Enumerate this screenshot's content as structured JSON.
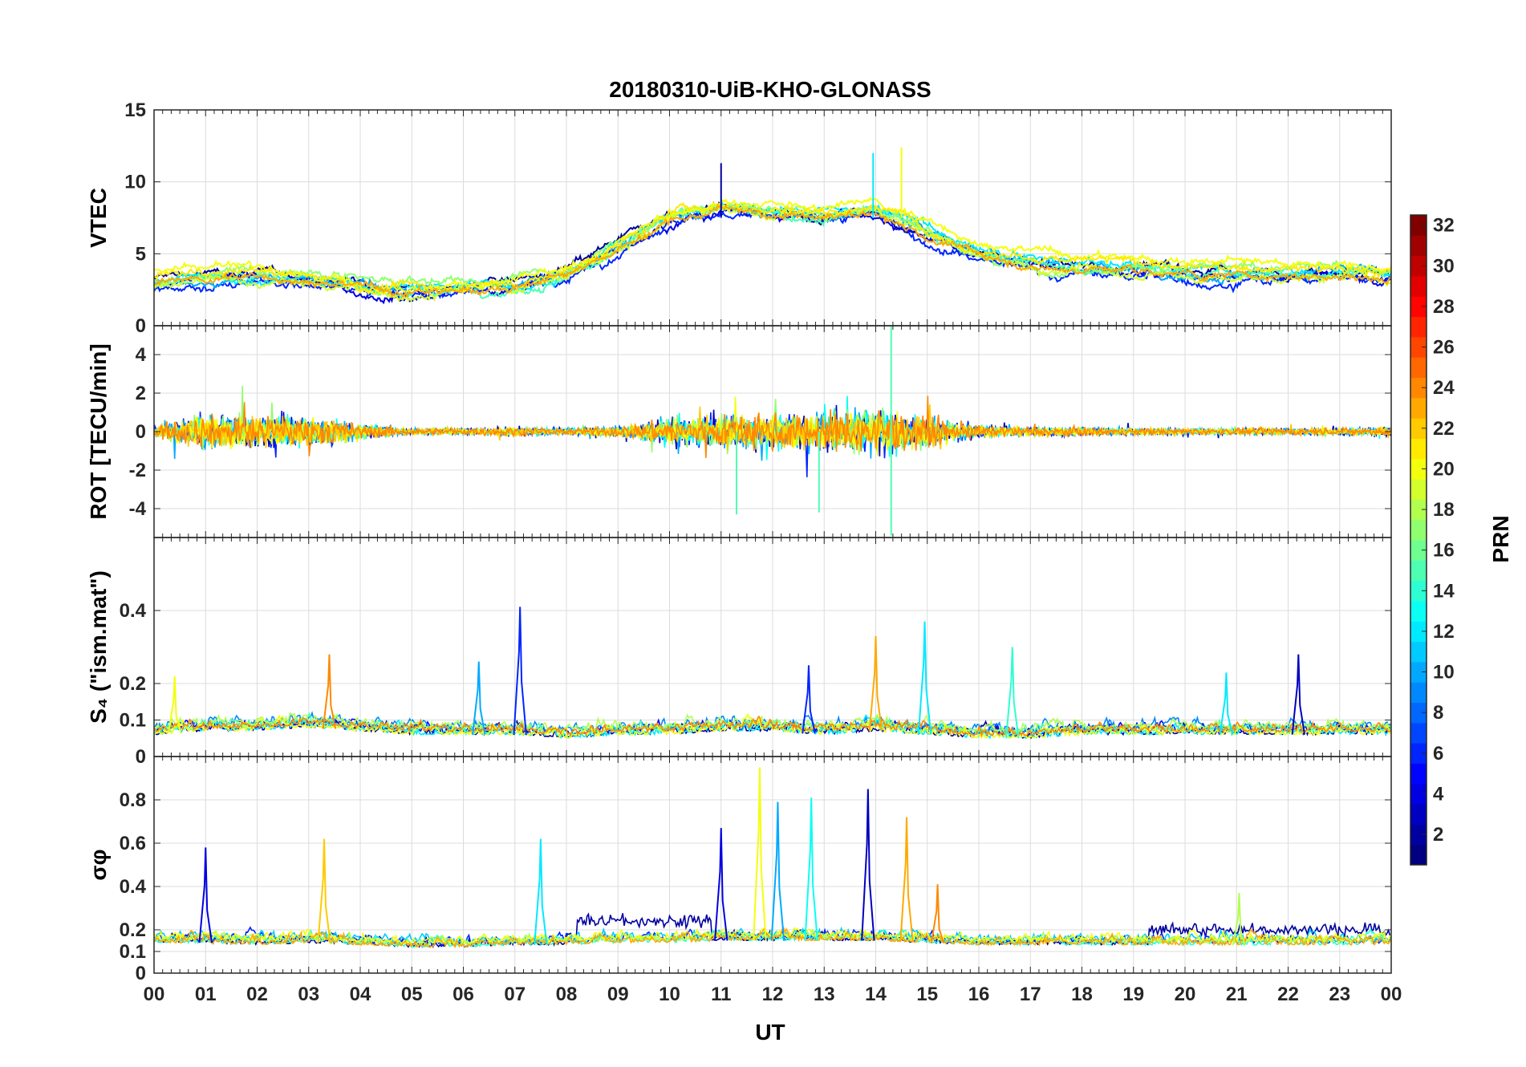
{
  "chart_data": {
    "type": "line",
    "title": "20180310-UiB-KHO-GLONASS",
    "xlabel": "UT",
    "x_ticks": [
      "00",
      "01",
      "02",
      "03",
      "04",
      "05",
      "06",
      "07",
      "08",
      "09",
      "10",
      "11",
      "12",
      "13",
      "14",
      "15",
      "16",
      "17",
      "18",
      "19",
      "20",
      "21",
      "22",
      "23",
      "00"
    ],
    "xlim": [
      0,
      24
    ],
    "colorbar": {
      "label": "PRN",
      "range": [
        1,
        32
      ],
      "ticks": [
        "2",
        "4",
        "6",
        "8",
        "10",
        "12",
        "14",
        "16",
        "18",
        "20",
        "22",
        "24",
        "26",
        "28",
        "30",
        "32"
      ],
      "colormap": "jet"
    },
    "panels": [
      {
        "id": "vtec",
        "ylabel": "VTEC",
        "ylim": [
          0,
          15
        ],
        "yticks": [
          "0",
          "5",
          "10",
          "15"
        ],
        "profile_hours": [
          0,
          1,
          2,
          3,
          4,
          5,
          6,
          7,
          8,
          9,
          10,
          11,
          12,
          13,
          14,
          15,
          16,
          17,
          18,
          19,
          20,
          21,
          22,
          23,
          24
        ],
        "profile_values": [
          3.0,
          3.3,
          3.4,
          3.2,
          2.7,
          2.5,
          2.7,
          2.9,
          3.5,
          5.5,
          7.5,
          8.2,
          7.8,
          7.6,
          8.0,
          6.5,
          5.0,
          4.3,
          4.1,
          4.0,
          3.8,
          3.6,
          3.7,
          3.7,
          3.5
        ],
        "spread": 1.1,
        "series_prn": [
          2,
          4,
          6,
          10,
          12,
          15,
          17,
          19,
          20,
          21,
          23
        ],
        "peaks": [
          {
            "x": 11.0,
            "y": 11.3
          },
          {
            "x": 13.95,
            "y": 12.0
          },
          {
            "x": 14.5,
            "y": 12.4
          }
        ]
      },
      {
        "id": "rot",
        "ylabel": "ROT [TECU/min]",
        "ylim": [
          -5.5,
          5.5
        ],
        "yticks": [
          "-4",
          "-2",
          "0",
          "2",
          "4"
        ],
        "profile_hours": [
          0,
          1,
          2,
          3,
          4,
          5,
          6,
          7,
          8,
          9,
          10,
          11,
          12,
          13,
          14,
          15,
          16,
          17,
          18,
          19,
          20,
          21,
          22,
          23,
          24
        ],
        "amplitude": [
          0.6,
          1.6,
          1.4,
          1.5,
          0.7,
          0.3,
          0.3,
          0.4,
          0.3,
          0.5,
          1.2,
          1.6,
          1.6,
          1.8,
          2.4,
          1.4,
          0.6,
          0.4,
          0.4,
          0.3,
          0.3,
          0.3,
          0.3,
          0.3,
          0.4
        ],
        "series_prn": [
          3,
          6,
          10,
          13,
          17,
          20,
          22,
          24
        ],
        "extremes": [
          {
            "x": 14.3,
            "y": 5.5
          },
          {
            "x": 14.3,
            "y": -5.4
          },
          {
            "x": 12.9,
            "y": -4.2
          },
          {
            "x": 11.3,
            "y": -4.3
          }
        ]
      },
      {
        "id": "s4",
        "ylabel": "S₄ (\"ism.mat\")",
        "ylim": [
          0,
          0.6
        ],
        "yticks": [
          "0",
          "0.1",
          "0.2",
          "0.4"
        ],
        "profile_hours": [
          0,
          1,
          2,
          3,
          4,
          5,
          6,
          7,
          8,
          9,
          10,
          11,
          12,
          13,
          14,
          15,
          16,
          17,
          18,
          19,
          20,
          21,
          22,
          23,
          24
        ],
        "baseline": [
          0.06,
          0.07,
          0.07,
          0.08,
          0.07,
          0.06,
          0.06,
          0.06,
          0.05,
          0.06,
          0.06,
          0.07,
          0.07,
          0.06,
          0.07,
          0.06,
          0.05,
          0.05,
          0.06,
          0.06,
          0.06,
          0.06,
          0.06,
          0.06,
          0.06
        ],
        "series_prn": [
          2,
          5,
          9,
          12,
          15,
          18,
          20,
          24
        ],
        "spikes": [
          {
            "x": 0.4,
            "y": 0.22,
            "prn": 20
          },
          {
            "x": 3.4,
            "y": 0.28,
            "prn": 24
          },
          {
            "x": 6.3,
            "y": 0.26,
            "prn": 10
          },
          {
            "x": 7.1,
            "y": 0.41,
            "prn": 6
          },
          {
            "x": 12.7,
            "y": 0.25,
            "prn": 6
          },
          {
            "x": 14.0,
            "y": 0.33,
            "prn": 23
          },
          {
            "x": 14.95,
            "y": 0.37,
            "prn": 12
          },
          {
            "x": 16.65,
            "y": 0.3,
            "prn": 14
          },
          {
            "x": 22.2,
            "y": 0.28,
            "prn": 3
          },
          {
            "x": 20.8,
            "y": 0.23,
            "prn": 12
          }
        ]
      },
      {
        "id": "sigma",
        "ylabel": "σφ",
        "ylim": [
          0,
          1.0
        ],
        "yticks": [
          "0",
          "0.1",
          "0.2",
          "0.4",
          "0.6",
          "0.8"
        ],
        "profile_hours": [
          0,
          1,
          2,
          3,
          4,
          5,
          6,
          7,
          8,
          9,
          10,
          11,
          12,
          13,
          14,
          15,
          16,
          17,
          18,
          19,
          20,
          21,
          22,
          23,
          24
        ],
        "baseline": [
          0.14,
          0.14,
          0.13,
          0.14,
          0.13,
          0.12,
          0.12,
          0.13,
          0.13,
          0.14,
          0.14,
          0.15,
          0.15,
          0.15,
          0.15,
          0.14,
          0.13,
          0.13,
          0.13,
          0.13,
          0.13,
          0.13,
          0.13,
          0.13,
          0.13
        ],
        "series_prn": [
          2,
          6,
          11,
          14,
          18,
          20,
          23
        ],
        "spikes": [
          {
            "x": 1.0,
            "y": 0.58,
            "prn": 4
          },
          {
            "x": 3.3,
            "y": 0.62,
            "prn": 22
          },
          {
            "x": 7.5,
            "y": 0.62,
            "prn": 12
          },
          {
            "x": 11.0,
            "y": 0.67,
            "prn": 4
          },
          {
            "x": 11.75,
            "y": 0.95,
            "prn": 20
          },
          {
            "x": 12.1,
            "y": 0.79,
            "prn": 10
          },
          {
            "x": 12.75,
            "y": 0.81,
            "prn": 13
          },
          {
            "x": 13.85,
            "y": 0.85,
            "prn": 3
          },
          {
            "x": 14.6,
            "y": 0.72,
            "prn": 23
          },
          {
            "x": 15.2,
            "y": 0.41,
            "prn": 24
          },
          {
            "x": 21.05,
            "y": 0.37,
            "prn": 18
          }
        ],
        "enhanced_prn2": [
          {
            "from": 8.2,
            "to": 10.8,
            "level": 0.24
          },
          {
            "from": 19.3,
            "to": 24.0,
            "level": 0.2
          }
        ]
      }
    ]
  }
}
